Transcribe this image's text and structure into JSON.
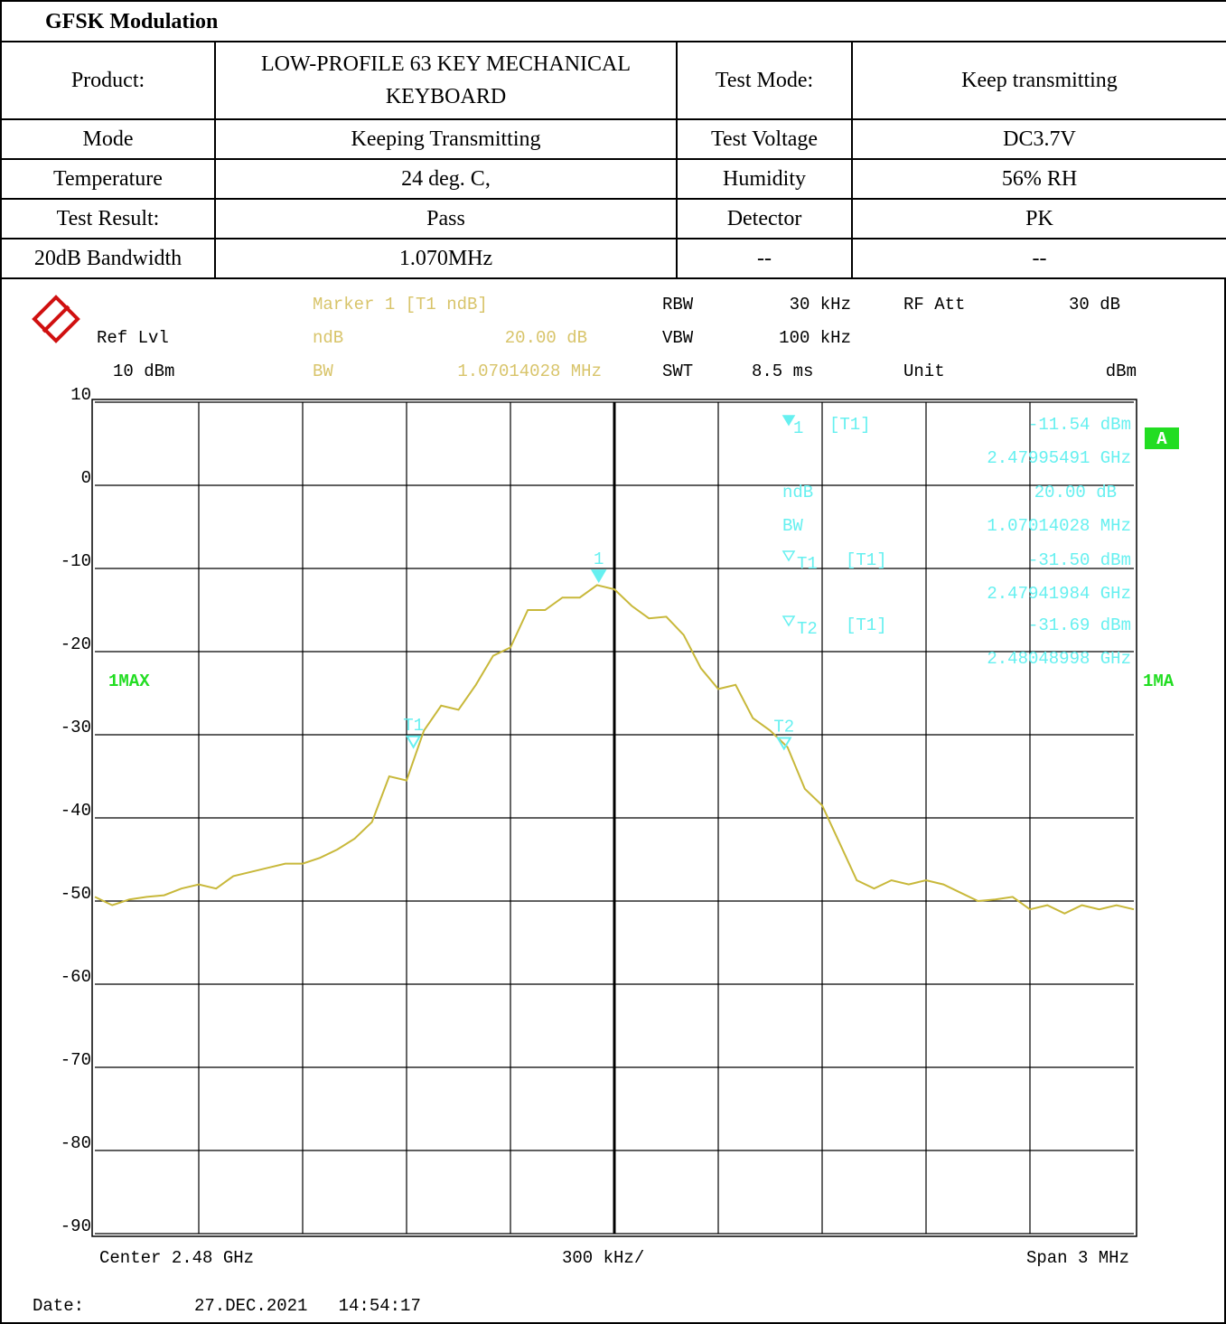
{
  "title": "GFSK Modulation",
  "table": {
    "rows": [
      [
        "Product:",
        "LOW-PROFILE 63 KEY MECHANICAL KEYBOARD",
        "Test Mode:",
        "Keep transmitting"
      ],
      [
        "Mode",
        "Keeping Transmitting",
        "Test Voltage",
        "DC3.7V"
      ],
      [
        "Temperature",
        "24 deg. C,",
        "Humidity",
        "56% RH"
      ],
      [
        "Test Result:",
        "Pass",
        "Detector",
        "PK"
      ],
      [
        "20dB Bandwidth",
        "1.070MHz",
        "--",
        "--"
      ]
    ]
  },
  "chart_data": {
    "type": "line",
    "header": {
      "marker": "Marker 1 [T1 ndB]",
      "ref_lvl": "Ref Lvl",
      "ref_value": "10 dBm",
      "ndb": "ndB",
      "ndb_value": "20.00 dB",
      "bw": "BW",
      "bw_value": "1.07014028 MHz",
      "rbw": "RBW",
      "rbw_value": "30 kHz",
      "vbw": "VBW",
      "vbw_value": "100 kHz",
      "swt": "SWT",
      "swt_value": "8.5 ms",
      "rf_att": "RF Att",
      "rf_att_value": "30 dB",
      "unit": "Unit",
      "unit_value": "dBm"
    },
    "trace_label": "1MAX",
    "trace_label_right": "1MA",
    "badge": "A",
    "readout": [
      [
        "ndB",
        "20.00 dB"
      ],
      [
        "BW",
        "1.07014028 MHz"
      ]
    ],
    "markers": [
      {
        "name": "1",
        "tag": "[T1]",
        "value": -11.54,
        "value_label": "-11.54 dBm",
        "freq": 2.47995491,
        "freq_label": "2.47995491 GHz"
      },
      {
        "name": "T1",
        "tag": "[T1]",
        "value": -31.5,
        "value_label": "-31.50 dBm",
        "freq": 2.47941984,
        "freq_label": "2.47941984 GHz"
      },
      {
        "name": "T2",
        "tag": "[T1]",
        "value": -31.69,
        "value_label": "-31.69 dBm",
        "freq": 2.48048998,
        "freq_label": "2.48048998 GHz"
      }
    ],
    "xlim": [
      2.4785,
      2.4815
    ],
    "ylim": [
      -90,
      10
    ],
    "yticks": [
      10,
      0,
      -10,
      -20,
      -30,
      -40,
      -50,
      -60,
      -70,
      -80,
      -90
    ],
    "color": "#c8b83a",
    "values": [
      -49.5,
      -50.5,
      -49.8,
      -49.5,
      -49.3,
      -48.5,
      -48,
      -48.5,
      -47,
      -46.5,
      -46,
      -45.5,
      -45.5,
      -44.8,
      -43.8,
      -42.5,
      -40.5,
      -35,
      -35.5,
      -29.5,
      -26.5,
      -27,
      -24,
      -20.5,
      -19.5,
      -15,
      -15,
      -13.5,
      -13.5,
      -12,
      -12.5,
      -14.5,
      -16,
      -15.8,
      -18,
      -22,
      -24.5,
      -24,
      -28,
      -29.5,
      -31.5,
      -36.5,
      -38.5,
      -43,
      -47.5,
      -48.5,
      -47.5,
      -48,
      -47.5,
      -48,
      -49,
      -50,
      -49.8,
      -49.5,
      -51,
      -50.5,
      -51.5,
      -50.5,
      -51,
      -50.5,
      -51
    ],
    "footer": {
      "center": "Center 2.48 GHz",
      "div": "300 kHz/",
      "span": "Span 3 MHz",
      "date_label": "Date:",
      "date": "27.DEC.2021   14:54:17"
    }
  }
}
